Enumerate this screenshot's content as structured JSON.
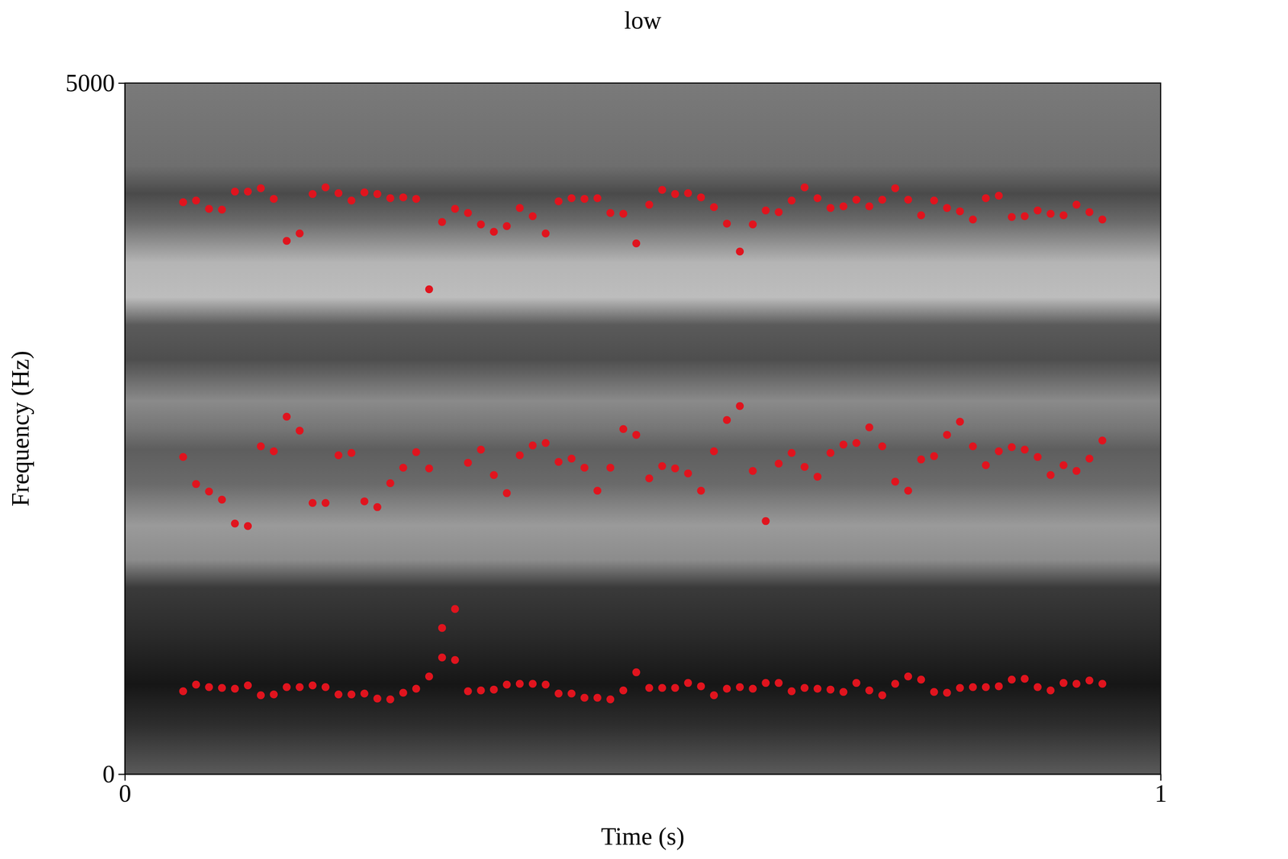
{
  "chart_data": {
    "type": "scatter",
    "title": "low",
    "x_label": "Time (s)",
    "y_label": "Frequency (Hz)",
    "xlim": [
      0,
      1
    ],
    "ylim": [
      0,
      5000
    ],
    "xticks": [
      0,
      1
    ],
    "yticks": [
      0,
      5000
    ],
    "grid": false,
    "marker": "circle",
    "x": [
      0.05625,
      0.06875,
      0.08125,
      0.09375,
      0.10625,
      0.11875,
      0.13125,
      0.14375,
      0.15625,
      0.16875,
      0.18125,
      0.19375,
      0.20625,
      0.21875,
      0.23125,
      0.24375,
      0.25625,
      0.26875,
      0.28125,
      0.29375,
      0.30625,
      0.31875,
      0.33125,
      0.34375,
      0.35625,
      0.36875,
      0.38125,
      0.39375,
      0.40625,
      0.41875,
      0.43125,
      0.44375,
      0.45625,
      0.46875,
      0.48125,
      0.49375,
      0.50625,
      0.51875,
      0.53125,
      0.54375,
      0.55625,
      0.56875,
      0.58125,
      0.59375,
      0.60625,
      0.61875,
      0.63125,
      0.64375,
      0.65625,
      0.66875,
      0.68125,
      0.69375,
      0.70625,
      0.71875,
      0.73125,
      0.74375,
      0.75625,
      0.76875,
      0.78125,
      0.79375,
      0.80625,
      0.81875,
      0.83125,
      0.84375,
      0.85625,
      0.86875,
      0.88125,
      0.89375,
      0.90625,
      0.91875,
      0.93125,
      0.94375
    ],
    "series": [
      {
        "color": "#e0141e",
        "values": [
          600,
          648,
          630,
          624,
          618,
          642,
          571,
          577,
          630,
          630,
          642,
          630,
          577,
          577,
          583,
          547,
          541,
          589,
          618,
          707,
          844,
          826,
          600,
          606,
          612,
          648,
          654,
          654,
          648,
          583,
          583,
          553,
          553,
          541,
          606,
          737,
          624,
          624,
          624,
          660,
          636,
          571,
          618,
          630,
          618,
          660,
          660,
          600,
          624,
          618,
          612,
          595,
          660,
          606,
          571,
          654,
          707,
          684,
          595,
          589,
          624,
          630,
          630,
          636,
          684,
          690,
          630,
          606,
          660,
          654,
          678,
          654
        ]
      },
      {
        "color": "#e0141e",
        "values": [
          2295,
          2099,
          2045,
          1986,
          1813,
          1795,
          2372,
          2336,
          2586,
          2485,
          1962,
          1962,
          2307,
          2324,
          1974,
          1932,
          2105,
          2217,
          2330,
          2212,
          1058,
          1195,
          2253,
          2348,
          2164,
          2033,
          2307,
          2378,
          2396,
          2259,
          2283,
          2217,
          2051,
          2217,
          2497,
          2455,
          2140,
          2229,
          2212,
          2176,
          2051,
          2336,
          2562,
          2663,
          2194,
          1831,
          2247,
          2324,
          2223,
          2152,
          2324,
          2384,
          2396,
          2509,
          2372,
          2116,
          2051,
          2277,
          2301,
          2455,
          2550,
          2372,
          2235,
          2336,
          2366,
          2348,
          2295,
          2164,
          2235,
          2194,
          2283,
          2414
        ]
      },
      {
        "color": "#e0141e",
        "values": [
          4138,
          4150,
          4090,
          4084,
          4215,
          4215,
          4239,
          4162,
          3858,
          3912,
          4197,
          4245,
          4203,
          4150,
          4209,
          4197,
          4167,
          4173,
          4162,
          3508,
          3995,
          4090,
          4060,
          3977,
          3924,
          3965,
          4096,
          4037,
          3912,
          4144,
          4167,
          4162,
          4167,
          4060,
          4054,
          3840,
          4120,
          4227,
          4197,
          4203,
          4173,
          4102,
          3983,
          3781,
          3977,
          4078,
          4066,
          4150,
          4245,
          4167,
          4096,
          4108,
          4156,
          4108,
          4156,
          4239,
          4156,
          4043,
          4150,
          4096,
          4072,
          4013,
          4167,
          4185,
          4031,
          4037,
          4078,
          4054,
          4043,
          4120,
          4066,
          4013
        ]
      }
    ]
  }
}
